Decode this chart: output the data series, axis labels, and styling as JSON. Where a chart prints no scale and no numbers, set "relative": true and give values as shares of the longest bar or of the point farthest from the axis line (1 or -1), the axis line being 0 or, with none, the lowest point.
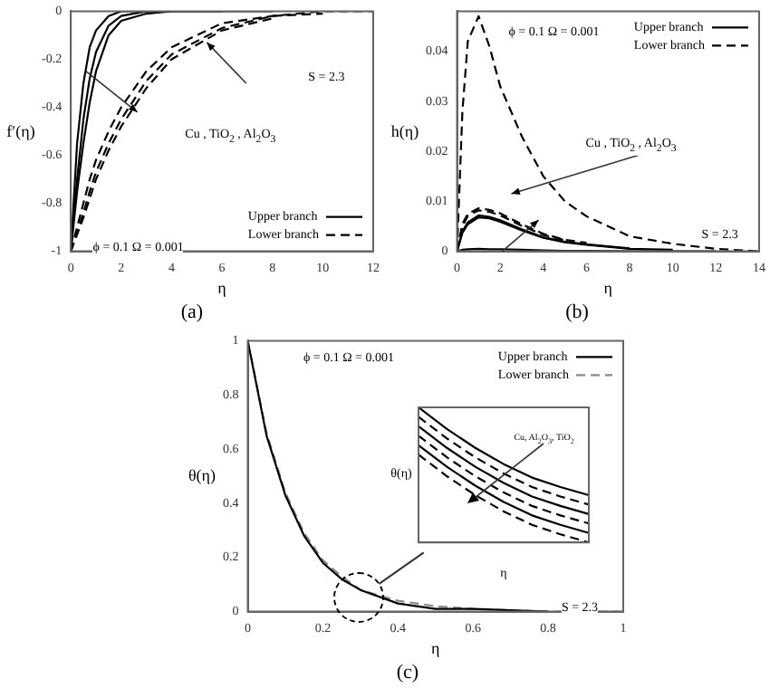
{
  "chart_data": [
    {
      "type": "line",
      "xlabel": "η",
      "ylabel": "f′(η)",
      "x": [
        0,
        0.25,
        0.5,
        0.75,
        1,
        1.5,
        2,
        3,
        4,
        6,
        8,
        10,
        12
      ],
      "xlim": [
        0,
        12
      ],
      "xticks": [
        0,
        2,
        4,
        6,
        8,
        10,
        12
      ],
      "ylim": [
        -1,
        0
      ],
      "yticks": [
        -1,
        -0.8,
        -0.6,
        -0.4,
        -0.2,
        0
      ],
      "legend": "bottom right",
      "series": [
        {
          "name": "Upper branch",
          "color": "#000000",
          "line_style": "solid",
          "x": [
            0,
            0.25,
            0.5,
            0.75,
            1,
            1.5,
            2,
            3,
            4
          ],
          "values": [
            -1,
            -0.55,
            -0.3,
            -0.15,
            -0.08,
            -0.02,
            0,
            0,
            0
          ]
        },
        {
          "color": "#000000",
          "line_style": "solid",
          "x": [
            0,
            0.25,
            0.5,
            0.75,
            1,
            1.5,
            2,
            3,
            4,
            6
          ],
          "values": [
            -1,
            -0.7,
            -0.45,
            -0.28,
            -0.17,
            -0.06,
            -0.02,
            0,
            0,
            0
          ]
        },
        {
          "color": "#000000",
          "line_style": "solid",
          "x": [
            0,
            0.25,
            0.5,
            0.75,
            1,
            1.5,
            2,
            3,
            4,
            6,
            8
          ],
          "values": [
            -1,
            -0.75,
            -0.55,
            -0.38,
            -0.25,
            -0.1,
            -0.04,
            -0.01,
            0,
            0,
            0
          ]
        },
        {
          "name": "Lower branch",
          "color": "#000000",
          "line_style": "dashed",
          "values": [
            -1,
            -0.9,
            -0.8,
            -0.7,
            -0.62,
            -0.5,
            -0.4,
            -0.25,
            -0.15,
            -0.05,
            -0.02,
            0,
            0
          ]
        },
        {
          "color": "#000000",
          "line_style": "dashed",
          "x": [
            0,
            0.25,
            0.5,
            0.75,
            1,
            1.5,
            2,
            3,
            4,
            6,
            8,
            10
          ],
          "values": [
            -1,
            -0.92,
            -0.84,
            -0.75,
            -0.67,
            -0.55,
            -0.45,
            -0.29,
            -0.18,
            -0.07,
            -0.02,
            -0.01
          ]
        },
        {
          "color": "#000000",
          "line_style": "dashed",
          "x": [
            0,
            0.25,
            0.5,
            0.75,
            1,
            1.5,
            2,
            3,
            4,
            6,
            8
          ],
          "values": [
            -1,
            -0.93,
            -0.86,
            -0.78,
            -0.7,
            -0.58,
            -0.48,
            -0.32,
            -0.2,
            -0.08,
            -0.03
          ]
        }
      ],
      "annotations": [
        "S = 2.3",
        "Cu , TiO$_{2}$ , Al$_{2}$O$_{3}$",
        "ϕ = 0.1   Ω = 0.001",
        "(a)"
      ]
    },
    {
      "type": "line",
      "xlabel": "η",
      "ylabel": "h(η)",
      "x": [
        0,
        0.25,
        0.5,
        1,
        1.5,
        2,
        3,
        4,
        5,
        6,
        8,
        10,
        12,
        14
      ],
      "xlim": [
        0,
        14
      ],
      "xticks": [
        0,
        2,
        4,
        6,
        8,
        10,
        12,
        14
      ],
      "ylim": [
        0,
        0.048
      ],
      "yticks": [
        0,
        0.01,
        0.02,
        0.03,
        0.04
      ],
      "legend": "top right",
      "series": [
        {
          "name": "Upper branch",
          "color": "#000000",
          "line_style": "solid",
          "x": [
            0,
            0.25,
            0.5,
            1,
            1.5,
            2,
            3,
            4,
            5,
            6,
            8,
            10,
            12
          ],
          "values": [
            0,
            0.0003,
            0.0004,
            0.0005,
            0.0004,
            0.0004,
            0.0003,
            0.0002,
            0.0001,
            0.0001,
            0,
            0,
            0
          ]
        },
        {
          "color": "#000000",
          "line_style": "solid",
          "x": [
            0,
            0.25,
            0.5,
            1,
            1.5,
            2,
            3,
            4,
            5,
            6,
            8
          ],
          "values": [
            0,
            0.004,
            0.0058,
            0.0072,
            0.0069,
            0.0062,
            0.0044,
            0.0028,
            0.0019,
            0.0014,
            0.0006
          ]
        },
        {
          "color": "#000000",
          "line_style": "solid",
          "x": [
            0,
            0.25,
            0.5,
            1,
            1.5,
            2,
            3,
            4,
            5,
            6,
            8,
            10
          ],
          "values": [
            0,
            0.0037,
            0.0054,
            0.0068,
            0.0066,
            0.0059,
            0.0042,
            0.0027,
            0.0018,
            0.0013,
            0.0005,
            0.0003
          ]
        },
        {
          "name": "Lower branch",
          "color": "#000000",
          "line_style": "dashed",
          "values": [
            0,
            0.028,
            0.042,
            0.047,
            0.041,
            0.033,
            0.023,
            0.015,
            0.01,
            0.007,
            0.003,
            0.0015,
            0.0005,
            0
          ]
        },
        {
          "color": "#000000",
          "line_style": "dashed",
          "x": [
            0,
            0.25,
            0.5,
            1,
            1.5,
            2,
            3,
            4,
            5,
            6
          ],
          "values": [
            0,
            0.0055,
            0.0075,
            0.0086,
            0.0083,
            0.0076,
            0.0054,
            0.0035,
            0.0023,
            0.0017
          ]
        },
        {
          "color": "#000000",
          "line_style": "dashed",
          "x": [
            0,
            0.25,
            0.5,
            1,
            1.5,
            2,
            3,
            4,
            5
          ],
          "values": [
            0,
            0.005,
            0.0071,
            0.0082,
            0.0079,
            0.0072,
            0.0051,
            0.0033,
            0.0022
          ]
        }
      ],
      "annotations": [
        "ϕ = 0.1   Ω = 0.001",
        "Cu , TiO$_{2}$ , Al$_{2}$O$_{3}$",
        "S = 2.3",
        "(b)"
      ]
    },
    {
      "type": "line",
      "xlabel": "η",
      "ylabel": "θ(η)",
      "x": [
        0,
        0.05,
        0.1,
        0.15,
        0.2,
        0.25,
        0.3,
        0.4,
        0.5,
        0.6,
        0.8,
        1
      ],
      "xlim": [
        0,
        1
      ],
      "xticks": [
        0,
        0.2,
        0.4,
        0.6,
        0.8,
        1
      ],
      "ylim": [
        0,
        1
      ],
      "yticks": [
        0,
        0.2,
        0.4,
        0.6,
        0.8,
        1
      ],
      "legend": "top right",
      "series": [
        {
          "name": "Upper branch",
          "color": "#000000",
          "line_style": "solid",
          "x": [
            0,
            0.05,
            0.1,
            0.15,
            0.2,
            0.25,
            0.3,
            0.4,
            0.5,
            0.6,
            0.8
          ],
          "values": [
            1,
            0.65,
            0.43,
            0.28,
            0.18,
            0.12,
            0.08,
            0.03,
            0.01,
            0.01,
            0
          ]
        },
        {
          "name": "Lower branch",
          "color": "#888888",
          "line_style": "dashed",
          "values": [
            1,
            0.66,
            0.44,
            0.29,
            0.19,
            0.13,
            0.08,
            0.04,
            0.02,
            0.01,
            0,
            0
          ]
        }
      ],
      "annotations": [
        "ϕ = 0.1   Ω = 0.001",
        "S = 2.3",
        "(c)"
      ]
    },
    {
      "type": "line",
      "xlabel": "η",
      "ylabel": "θ(η)",
      "relative": true,
      "categories": [
        null,
        null,
        null,
        null,
        null,
        null,
        null
      ],
      "series": [
        {
          "color": "#000000",
          "line_style": "solid",
          "values": [
            1,
            0.84,
            0.7,
            0.58,
            0.48,
            0.41,
            0.35
          ]
        },
        {
          "color": "#000000",
          "line_style": "dashed",
          "values": [
            0.93,
            0.77,
            0.63,
            0.51,
            0.41,
            0.34,
            0.28
          ]
        },
        {
          "color": "#000000",
          "line_style": "solid",
          "values": [
            0.86,
            0.7,
            0.56,
            0.44,
            0.34,
            0.27,
            0.21
          ]
        },
        {
          "color": "#000000",
          "line_style": "dashed",
          "values": [
            0.79,
            0.63,
            0.49,
            0.37,
            0.27,
            0.2,
            0.14
          ]
        },
        {
          "color": "#000000",
          "line_style": "solid",
          "values": [
            0.72,
            0.56,
            0.42,
            0.3,
            0.2,
            0.13,
            0.07
          ]
        },
        {
          "color": "#000000",
          "line_style": "dashed",
          "values": [
            0.65,
            0.49,
            0.35,
            0.23,
            0.13,
            0.06,
            0
          ]
        }
      ],
      "annotations": [
        "Cu, Al$_{2}$O$_{3}$, TiO$_{2}$"
      ]
    }
  ]
}
